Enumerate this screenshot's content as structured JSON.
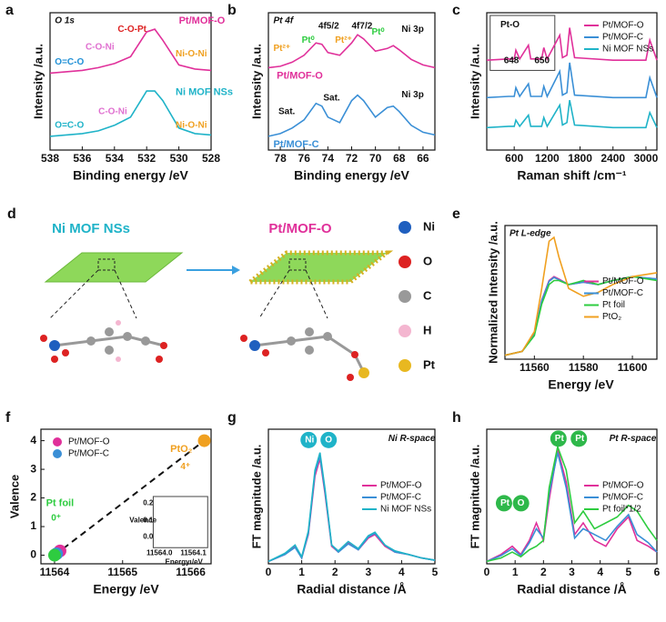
{
  "chart_data": [
    {
      "type": "line",
      "panel": "a",
      "x_label": "Binding energy /eV",
      "y_label": "Intensity /a.u.",
      "x": [
        538,
        537,
        536,
        535,
        534,
        533,
        532,
        531.5,
        531,
        530,
        529,
        528
      ],
      "xlim": [
        538,
        528
      ],
      "xticks": [
        538,
        536,
        534,
        532,
        530,
        528
      ],
      "ylim": [
        0,
        10
      ],
      "series": [
        {
          "name": "Pt/MOF-O",
          "color": "#e0309a",
          "values": [
            5.6,
            5.7,
            5.8,
            6.0,
            6.3,
            6.8,
            8.6,
            8.8,
            8.0,
            6.2,
            5.9,
            5.8
          ]
        },
        {
          "name": "Ni MOF NSs",
          "color": "#1fb3c8",
          "values": [
            1.0,
            1.1,
            1.2,
            1.4,
            1.8,
            2.4,
            4.3,
            4.3,
            3.6,
            1.6,
            1.2,
            1.1
          ]
        }
      ],
      "annotations": [
        "O 1s",
        "C-O-Pt",
        "C-O-Ni",
        "O=C-O",
        "Ni-O-Ni",
        "C-O-Ni",
        "O=C-O",
        "Ni-O-Ni"
      ]
    },
    {
      "type": "line",
      "panel": "b",
      "x_label": "Binding energy /eV",
      "y_label": "Intensity /a.u.",
      "x": [
        79,
        78,
        77,
        76,
        75,
        74.5,
        74,
        73,
        72,
        71.5,
        71,
        70,
        69,
        68.5,
        68,
        67,
        66,
        65
      ],
      "xlim": [
        79,
        65
      ],
      "xticks": [
        78,
        76,
        74,
        72,
        70,
        68,
        66
      ],
      "ylim": [
        0,
        10
      ],
      "series": [
        {
          "name": "Pt/MOF-O",
          "color": "#e0309a",
          "values": [
            6.0,
            6.1,
            6.4,
            6.9,
            7.8,
            7.7,
            7.1,
            6.9,
            7.8,
            8.4,
            8.1,
            7.2,
            7.4,
            7.6,
            7.3,
            6.6,
            6.2,
            6.0
          ]
        },
        {
          "name": "Pt/MOF-C",
          "color": "#3a8fd6",
          "values": [
            1.0,
            1.2,
            1.6,
            2.2,
            3.4,
            3.2,
            2.4,
            2.0,
            3.6,
            4.0,
            3.6,
            2.4,
            3.1,
            3.2,
            2.8,
            1.8,
            1.3,
            1.1
          ]
        }
      ],
      "annotations": [
        "Pt 4f",
        "4f5/2",
        "4f7/2",
        "Pt²⁺",
        "Pt⁰",
        "Pt²⁺",
        "Pt⁰",
        "Ni 3p",
        "Ni 3p",
        "Sat.",
        "Sat."
      ]
    },
    {
      "type": "line",
      "panel": "c",
      "x_label": "Raman shift /cm⁻¹",
      "y_label": "Intensity /a.u.",
      "x": [
        100,
        500,
        600,
        630,
        700,
        860,
        900,
        1100,
        1140,
        1200,
        1430,
        1480,
        1560,
        1610,
        1700,
        2400,
        3000,
        3070,
        3200
      ],
      "xlim": [
        100,
        3200
      ],
      "xticks": [
        600,
        1200,
        1800,
        2400,
        3000
      ],
      "ylim": [
        0,
        11
      ],
      "legend": "upper right",
      "series": [
        {
          "name": "Pt/MOF-O",
          "color": "#e0309a",
          "values": [
            7.2,
            7.3,
            7.3,
            8.0,
            7.3,
            8.4,
            7.3,
            7.3,
            8.2,
            7.3,
            9.2,
            7.4,
            7.6,
            9.8,
            7.4,
            7.2,
            7.2,
            8.8,
            7.2
          ]
        },
        {
          "name": "Pt/MOF-C",
          "color": "#3a8fd6",
          "values": [
            4.2,
            4.3,
            4.3,
            5.0,
            4.3,
            5.3,
            4.3,
            4.3,
            5.1,
            4.3,
            6.3,
            4.4,
            4.6,
            7.0,
            4.4,
            4.2,
            4.2,
            5.8,
            4.2
          ]
        },
        {
          "name": "Ni MOF NSs",
          "color": "#1fb3c8",
          "values": [
            1.8,
            1.9,
            1.9,
            2.4,
            1.9,
            2.8,
            1.9,
            1.9,
            2.6,
            1.9,
            3.6,
            2.0,
            2.2,
            4.0,
            2.0,
            1.8,
            1.8,
            3.0,
            1.8
          ]
        }
      ],
      "annotations": [
        "Pt-O",
        "648",
        "650"
      ]
    },
    {
      "type": "line",
      "panel": "e",
      "x_label": "Energy /eV",
      "y_label": "Normalized Intensity /a.u.",
      "x": [
        11548,
        11555,
        11560,
        11563,
        11566,
        11568,
        11570,
        11574,
        11580,
        11586,
        11592,
        11600,
        11610
      ],
      "xlim": [
        11548,
        11610
      ],
      "xticks": [
        11560,
        11580,
        11600
      ],
      "ylim": [
        0,
        1.7
      ],
      "legend": "center right",
      "series": [
        {
          "name": "Pt/MOF-O",
          "color": "#e0309a",
          "values": [
            0.05,
            0.1,
            0.32,
            0.75,
            1.0,
            1.05,
            1.02,
            0.95,
            0.98,
            0.95,
            1.0,
            1.05,
            1.02
          ]
        },
        {
          "name": "Pt/MOF-C",
          "color": "#3a8fd6",
          "values": [
            0.05,
            0.1,
            0.31,
            0.74,
            0.99,
            1.04,
            1.01,
            0.95,
            0.98,
            0.95,
            1.0,
            1.05,
            1.02
          ]
        },
        {
          "name": "Pt foil",
          "color": "#2ecc40",
          "values": [
            0.05,
            0.1,
            0.3,
            0.7,
            0.95,
            1.0,
            1.0,
            0.95,
            1.0,
            0.95,
            1.0,
            1.05,
            1.0
          ]
        },
        {
          "name": "PtO₂",
          "color": "#f0a020",
          "values": [
            0.05,
            0.1,
            0.35,
            0.9,
            1.5,
            1.55,
            1.3,
            0.9,
            0.8,
            0.85,
            0.95,
            1.05,
            1.1
          ]
        }
      ],
      "annotations": [
        "Pt L-edge"
      ]
    },
    {
      "type": "scatter",
      "panel": "f",
      "x_label": "Energy /eV",
      "y_label": "Valence",
      "xlim": [
        11563.8,
        11566.3
      ],
      "xticks": [
        11564,
        11565,
        11566
      ],
      "ylim": [
        -0.3,
        4.4
      ],
      "yticks": [
        0,
        1,
        2,
        3,
        4
      ],
      "legend": "upper left",
      "series": [
        {
          "name": "Pt/MOF-O",
          "color": "#e0309a",
          "x": [
            11564.08
          ],
          "values": [
            0.15
          ]
        },
        {
          "name": "Pt/MOF-C",
          "color": "#3a8fd6",
          "x": [
            11564.03
          ],
          "values": [
            0.05
          ]
        },
        {
          "name": "Pt foil",
          "color": "#2ecc40",
          "x": [
            11564.0
          ],
          "values": [
            0
          ]
        },
        {
          "name": "PtO₂",
          "color": "#f0a020",
          "x": [
            11566.2
          ],
          "values": [
            4
          ]
        }
      ],
      "annotations": [
        "4⁺",
        "0⁺",
        "0.2",
        "0.1",
        "0.0",
        "11564.0",
        "11564.1",
        "Valence",
        "Energy /eV"
      ]
    },
    {
      "type": "line",
      "panel": "g",
      "x_label": "Radial distance /Å",
      "y_label": "FT magnitude /a.u.",
      "x": [
        0,
        0.5,
        0.8,
        1.0,
        1.2,
        1.4,
        1.55,
        1.7,
        1.9,
        2.1,
        2.4,
        2.7,
        3.0,
        3.2,
        3.5,
        3.8,
        4.2,
        4.6,
        5
      ],
      "xlim": [
        0,
        5
      ],
      "xticks": [
        0,
        1,
        2,
        3,
        4,
        5
      ],
      "ylim": [
        0,
        1.15
      ],
      "legend": "center right",
      "series": [
        {
          "name": "Pt/MOF-O",
          "color": "#e0309a",
          "values": [
            0.02,
            0.08,
            0.15,
            0.05,
            0.25,
            0.75,
            0.9,
            0.6,
            0.15,
            0.1,
            0.18,
            0.12,
            0.22,
            0.25,
            0.15,
            0.1,
            0.08,
            0.05,
            0.03
          ]
        },
        {
          "name": "Pt/MOF-C",
          "color": "#3a8fd6",
          "values": [
            0.02,
            0.08,
            0.14,
            0.05,
            0.26,
            0.78,
            0.92,
            0.62,
            0.16,
            0.1,
            0.17,
            0.12,
            0.23,
            0.26,
            0.16,
            0.1,
            0.08,
            0.05,
            0.03
          ]
        },
        {
          "name": "Ni MOF NSs",
          "color": "#1fb3c8",
          "values": [
            0.02,
            0.09,
            0.16,
            0.06,
            0.28,
            0.8,
            0.95,
            0.64,
            0.16,
            0.11,
            0.19,
            0.13,
            0.24,
            0.27,
            0.16,
            0.11,
            0.08,
            0.05,
            0.03
          ]
        }
      ],
      "annotations": [
        "Ni R-space",
        "Ni",
        "O"
      ]
    },
    {
      "type": "line",
      "panel": "h",
      "x_label": "Radial distance /Å",
      "y_label": "FT magnitude /a.u.",
      "x": [
        0,
        0.5,
        0.9,
        1.2,
        1.5,
        1.75,
        2.0,
        2.2,
        2.5,
        2.8,
        3.1,
        3.4,
        3.8,
        4.2,
        4.6,
        5.0,
        5.3,
        5.7,
        6
      ],
      "xlim": [
        0,
        6
      ],
      "xticks": [
        0,
        1,
        2,
        3,
        4,
        5,
        6
      ],
      "ylim": [
        0,
        1.15
      ],
      "legend": "center right",
      "series": [
        {
          "name": "Pt/MOF-O",
          "color": "#e0309a",
          "values": [
            0.02,
            0.08,
            0.15,
            0.08,
            0.2,
            0.35,
            0.2,
            0.55,
            0.98,
            0.7,
            0.25,
            0.35,
            0.2,
            0.15,
            0.3,
            0.4,
            0.2,
            0.15,
            0.1
          ]
        },
        {
          "name": "Pt/MOF-C",
          "color": "#3a8fd6",
          "values": [
            0.02,
            0.07,
            0.13,
            0.07,
            0.18,
            0.3,
            0.22,
            0.6,
            0.95,
            0.65,
            0.22,
            0.3,
            0.25,
            0.2,
            0.32,
            0.42,
            0.25,
            0.18,
            0.1
          ]
        },
        {
          "name": "Pt foil*1/2",
          "color": "#2ecc40",
          "values": [
            0.02,
            0.05,
            0.1,
            0.06,
            0.12,
            0.15,
            0.2,
            0.65,
            1.0,
            0.8,
            0.35,
            0.45,
            0.3,
            0.35,
            0.4,
            0.5,
            0.45,
            0.3,
            0.2
          ]
        }
      ],
      "annotations": [
        "Pt R-space",
        "Pt",
        "Pt",
        "Pt",
        "O"
      ]
    }
  ],
  "diagram": {
    "panel": "d",
    "left_title": "Ni MOF NSs",
    "right_title": "Pt/MOF-O",
    "legend": [
      "Ni",
      "O",
      "C",
      "H",
      "Pt"
    ]
  }
}
